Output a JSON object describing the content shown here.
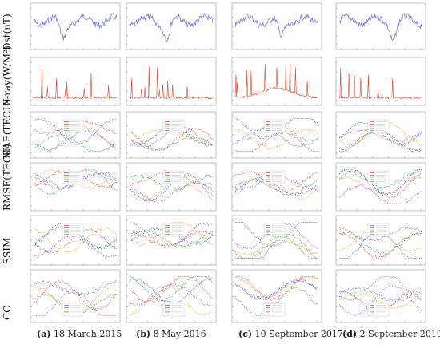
{
  "row_labels": [
    "Dst(nT)",
    "X-ray(W/M²)",
    "MAE(TECU)",
    "RMSE(TECU)",
    "SSIM",
    "CC"
  ],
  "columns": [
    {
      "letter": "(a)",
      "date": "18 March 2015"
    },
    {
      "letter": "(b)",
      "date": "8 May 2016"
    },
    {
      "letter": "(c)",
      "date": "10 September 2017"
    },
    {
      "letter": "(d)",
      "date": "2 September 2019"
    }
  ],
  "colors": {
    "dst": "#5b5be8",
    "xray": "#d9452e",
    "series": [
      "#e8433a",
      "#3d6fe0",
      "#f2a43a",
      "#39a845",
      "#9b59d6"
    ]
  },
  "chart_data": {
    "type": "line",
    "layout": "grid-of-small-multiples",
    "rows": 6,
    "cols": 4,
    "series_names_visible": false
  }
}
